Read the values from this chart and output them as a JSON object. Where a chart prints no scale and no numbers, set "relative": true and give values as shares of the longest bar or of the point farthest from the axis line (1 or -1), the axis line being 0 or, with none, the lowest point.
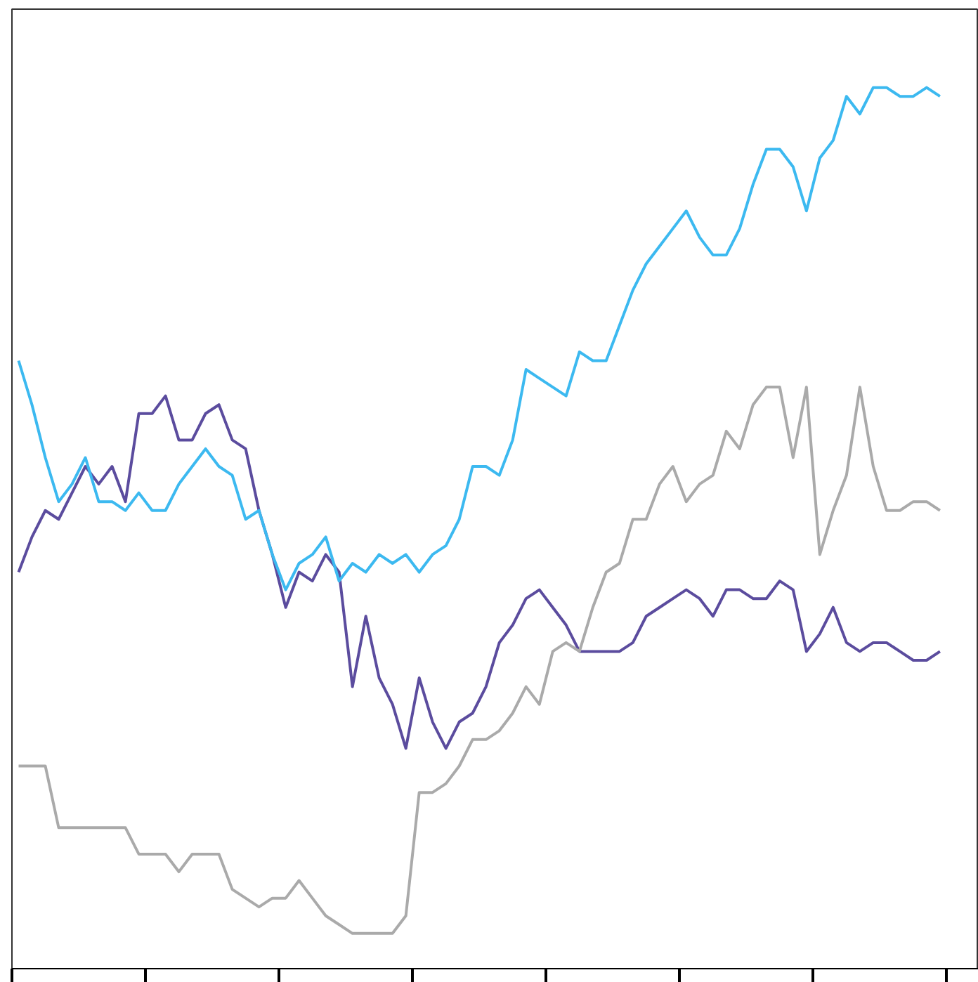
{
  "chart_data": {
    "type": "line",
    "relative": true,
    "grid": false,
    "marker": "none",
    "line_style": "solid",
    "categories": [
      null,
      null,
      null,
      null,
      null,
      null,
      null,
      null,
      null,
      null,
      null,
      null,
      null,
      null,
      null,
      null,
      null,
      null,
      null,
      null,
      null,
      null,
      null,
      null,
      null,
      null,
      null,
      null,
      null,
      null,
      null,
      null,
      null,
      null,
      null,
      null,
      null,
      null,
      null,
      null,
      null,
      null,
      null,
      null,
      null,
      null,
      null,
      null,
      null,
      null,
      null,
      null,
      null,
      null,
      null,
      null,
      null,
      null,
      null,
      null,
      null,
      null,
      null,
      null,
      null,
      null,
      null,
      null,
      null,
      null
    ],
    "series": [
      {
        "color": "#5b4c9e",
        "values": [
          0.45,
          0.49,
          0.52,
          0.51,
          0.54,
          0.57,
          0.55,
          0.57,
          0.53,
          0.63,
          0.63,
          0.65,
          0.6,
          0.6,
          0.63,
          0.64,
          0.6,
          0.59,
          0.52,
          0.47,
          0.41,
          0.45,
          0.44,
          0.47,
          0.45,
          0.32,
          0.4,
          0.33,
          0.3,
          0.25,
          0.33,
          0.28,
          0.25,
          0.28,
          0.29,
          0.32,
          0.37,
          0.39,
          0.42,
          0.43,
          0.41,
          0.39,
          0.36,
          0.36,
          0.36,
          0.36,
          0.37,
          0.4,
          0.41,
          0.42,
          0.43,
          0.42,
          0.4,
          0.43,
          0.43,
          0.42,
          0.42,
          0.44,
          0.43,
          0.36,
          0.38,
          0.41,
          0.37,
          0.36,
          0.37,
          0.37,
          0.36,
          0.35,
          0.35,
          0.36
        ]
      },
      {
        "color": "#3cb9f0",
        "values": [
          0.69,
          0.64,
          0.58,
          0.53,
          0.55,
          0.58,
          0.53,
          0.53,
          0.52,
          0.54,
          0.52,
          0.52,
          0.55,
          0.57,
          0.59,
          0.57,
          0.56,
          0.51,
          0.52,
          0.47,
          0.43,
          0.46,
          0.47,
          0.49,
          0.44,
          0.46,
          0.45,
          0.47,
          0.46,
          0.47,
          0.45,
          0.47,
          0.48,
          0.51,
          0.57,
          0.57,
          0.56,
          0.6,
          0.68,
          0.67,
          0.66,
          0.65,
          0.7,
          0.69,
          0.69,
          0.73,
          0.77,
          0.8,
          0.82,
          0.84,
          0.86,
          0.83,
          0.81,
          0.81,
          0.84,
          0.89,
          0.93,
          0.93,
          0.91,
          0.86,
          0.92,
          0.94,
          0.99,
          0.97,
          1.0,
          1.0,
          0.99,
          0.99,
          1.0,
          0.99
        ]
      },
      {
        "color": "#aaaaaa",
        "values": [
          0.23,
          0.23,
          0.23,
          0.16,
          0.16,
          0.16,
          0.16,
          0.16,
          0.16,
          0.13,
          0.13,
          0.13,
          0.11,
          0.13,
          0.13,
          0.13,
          0.09,
          0.08,
          0.07,
          0.08,
          0.08,
          0.1,
          0.08,
          0.06,
          0.05,
          0.04,
          0.04,
          0.04,
          0.04,
          0.06,
          0.2,
          0.2,
          0.21,
          0.23,
          0.26,
          0.26,
          0.27,
          0.29,
          0.32,
          0.3,
          0.36,
          0.37,
          0.36,
          0.41,
          0.45,
          0.46,
          0.51,
          0.51,
          0.55,
          0.57,
          0.53,
          0.55,
          0.56,
          0.61,
          0.59,
          0.64,
          0.66,
          0.66,
          0.58,
          0.66,
          0.47,
          0.52,
          0.56,
          0.66,
          0.57,
          0.52,
          0.52,
          0.53,
          0.53,
          0.52
        ]
      }
    ]
  }
}
